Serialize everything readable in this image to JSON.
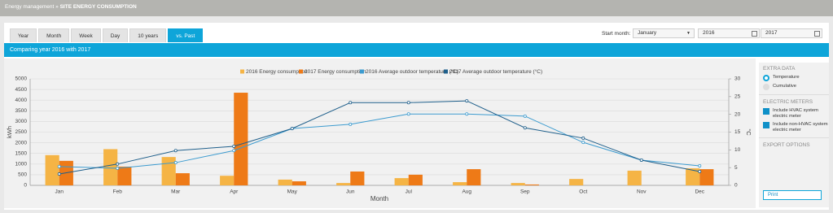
{
  "header": {
    "breadcrumb": [
      "Energy management",
      "SITE ENERGY CONSUMPTION"
    ],
    "separator": "»"
  },
  "tabs": {
    "items": [
      "Year",
      "Month",
      "Week",
      "Day",
      "10 years",
      "vs. Past"
    ],
    "active": 5
  },
  "filters": {
    "start_month_label": "Start month:",
    "start_month": "January",
    "year_a": "2016",
    "year_b": "2017"
  },
  "banner": {
    "title": "Comparing year 2016 with 2017"
  },
  "sidebar": {
    "sections": [
      {
        "title": "EXTRA DATA",
        "kind": "radio",
        "options": [
          {
            "label": "Temperature",
            "selected": true
          },
          {
            "label": "Cumulative",
            "selected": false
          }
        ]
      },
      {
        "title": "ELECTRIC METERS",
        "kind": "checkbox",
        "options": [
          {
            "label": "Include HVAC system electric meter",
            "selected": true
          },
          {
            "label": "Include non-HVAC system electric meter",
            "selected": true
          }
        ]
      },
      {
        "title": "EXPORT OPTIONS",
        "kind": "button",
        "options": [
          {
            "label": "Print"
          }
        ]
      }
    ]
  },
  "chart_data": {
    "type": "bar",
    "x_label": "Month",
    "y_label": "kWh",
    "y2_label": "°C",
    "categories": [
      "Jan",
      "Feb",
      "Mar",
      "Apr",
      "May",
      "Jun",
      "Jul",
      "Aug",
      "Sep",
      "Oct",
      "Nov",
      "Dec"
    ],
    "series": [
      {
        "name": "2016 Energy consumption",
        "color": "#f5b445",
        "values": [
          1420,
          1700,
          1330,
          450,
          270,
          110,
          340,
          150,
          110,
          300,
          690,
          800
        ]
      },
      {
        "name": "2017 Energy consumption",
        "color": "#ee7a17",
        "values": [
          1150,
          880,
          570,
          4350,
          190,
          650,
          500,
          760,
          40,
          null,
          null,
          760
        ]
      },
      {
        "name": "2016 Average outdoor temperature (°C)",
        "color": "#3c9bcf",
        "type": "line",
        "axis": "y2",
        "values": [
          5.3,
          4.8,
          6.4,
          9.8,
          16.0,
          17.2,
          20.1,
          20.1,
          19.5,
          12.1,
          7.1,
          5.5
        ]
      },
      {
        "name": "2017 Average outdoor temperature (°C)",
        "color": "#1f5f8b",
        "type": "line",
        "axis": "y2",
        "values": [
          3.2,
          6.0,
          9.8,
          11.0,
          16.0,
          23.3,
          23.3,
          23.8,
          16.2,
          13.3,
          7.1,
          3.9
        ]
      }
    ],
    "ylim": [
      0,
      5000
    ],
    "yticks": [
      0,
      500,
      1000,
      1500,
      2000,
      2500,
      3000,
      3500,
      4000,
      4500,
      5000
    ],
    "y2lim": [
      0,
      30
    ],
    "y2ticks": [
      0,
      5,
      10,
      15,
      20,
      25,
      30
    ],
    "grid": true
  }
}
